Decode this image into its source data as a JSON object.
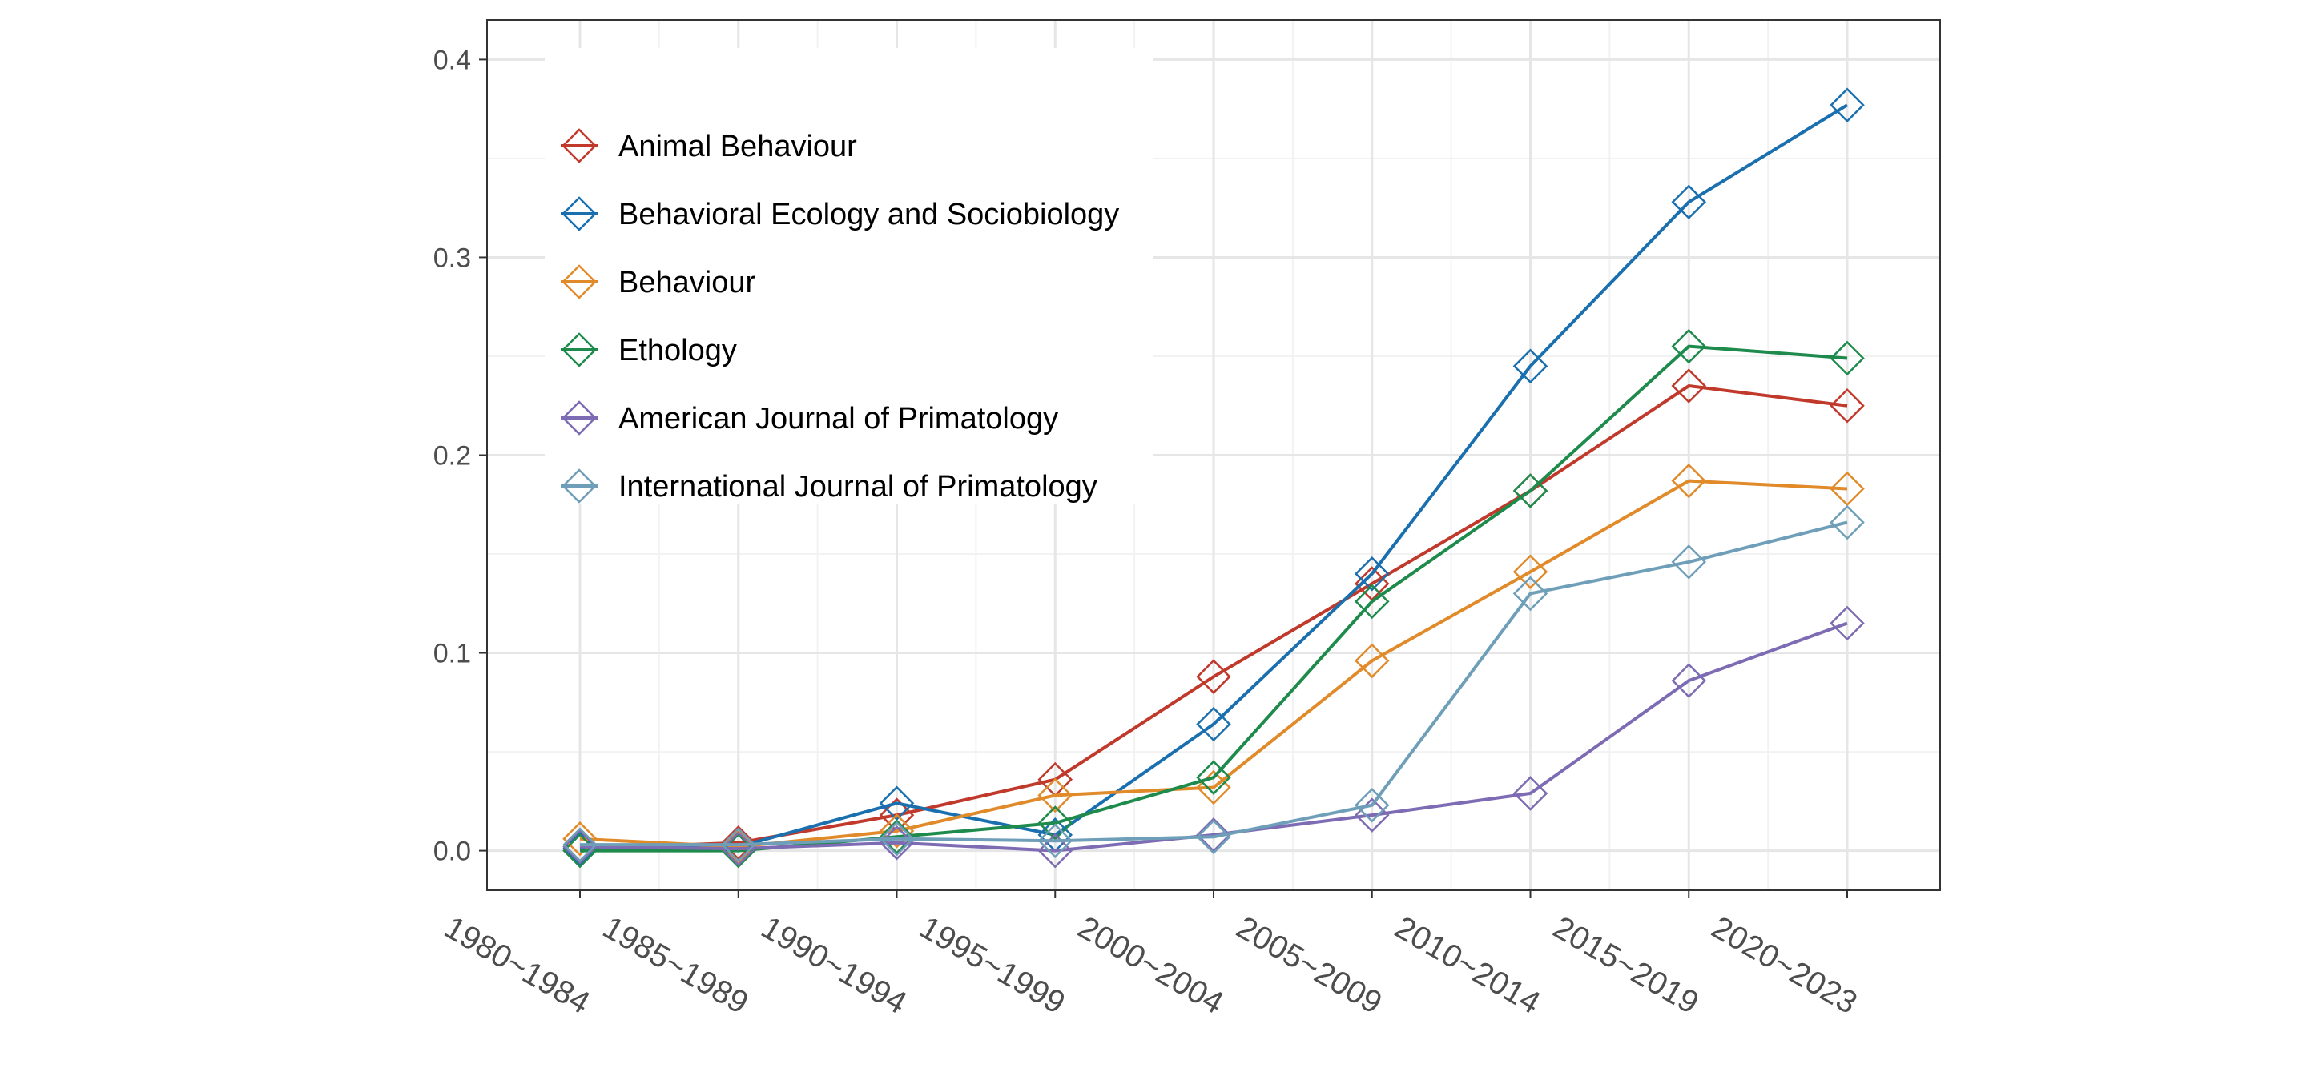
{
  "chart_data": {
    "type": "line",
    "title": "",
    "xlabel": "",
    "ylabel": "",
    "x": [
      "1980~1984",
      "1985~1989",
      "1990~1994",
      "1995~1999",
      "2000~2004",
      "2005~2009",
      "2010~2014",
      "2015~2019",
      "2020~2023"
    ],
    "ylim": [
      -0.02,
      0.42
    ],
    "yticks": [
      "0.0",
      "0.1",
      "0.2",
      "0.3",
      "0.4"
    ],
    "ytick_values": [
      0.0,
      0.1,
      0.2,
      0.3,
      0.4
    ],
    "grid": true,
    "legend_position": "top-left",
    "marker": "open-diamond",
    "series": [
      {
        "name": "Animal Behaviour",
        "color": "#c0392b",
        "values": [
          0.001,
          0.004,
          0.018,
          0.036,
          0.088,
          0.135,
          0.182,
          0.235,
          0.225
        ]
      },
      {
        "name": "Behavioral Ecology and Sociobiology",
        "color": "#1a6faf",
        "values": [
          0.001,
          0.002,
          0.024,
          0.008,
          0.064,
          0.14,
          0.245,
          0.328,
          0.377
        ]
      },
      {
        "name": "Behaviour",
        "color": "#e08a2a",
        "values": [
          0.006,
          0.002,
          0.01,
          0.028,
          0.032,
          0.096,
          0.141,
          0.187,
          0.183
        ]
      },
      {
        "name": "Ethology",
        "color": "#1e8a4c",
        "values": [
          0.0,
          0.0,
          0.007,
          0.014,
          0.037,
          0.126,
          0.182,
          0.255,
          0.249
        ]
      },
      {
        "name": "American Journal of Primatology",
        "color": "#7d6bb3",
        "values": [
          0.002,
          0.001,
          0.004,
          0.0,
          0.008,
          0.018,
          0.029,
          0.086,
          0.115
        ]
      },
      {
        "name": "International Journal of Primatology",
        "color": "#6f9fb8",
        "values": [
          0.003,
          0.003,
          0.006,
          0.005,
          0.007,
          0.023,
          0.13,
          0.146,
          0.166
        ]
      }
    ]
  }
}
